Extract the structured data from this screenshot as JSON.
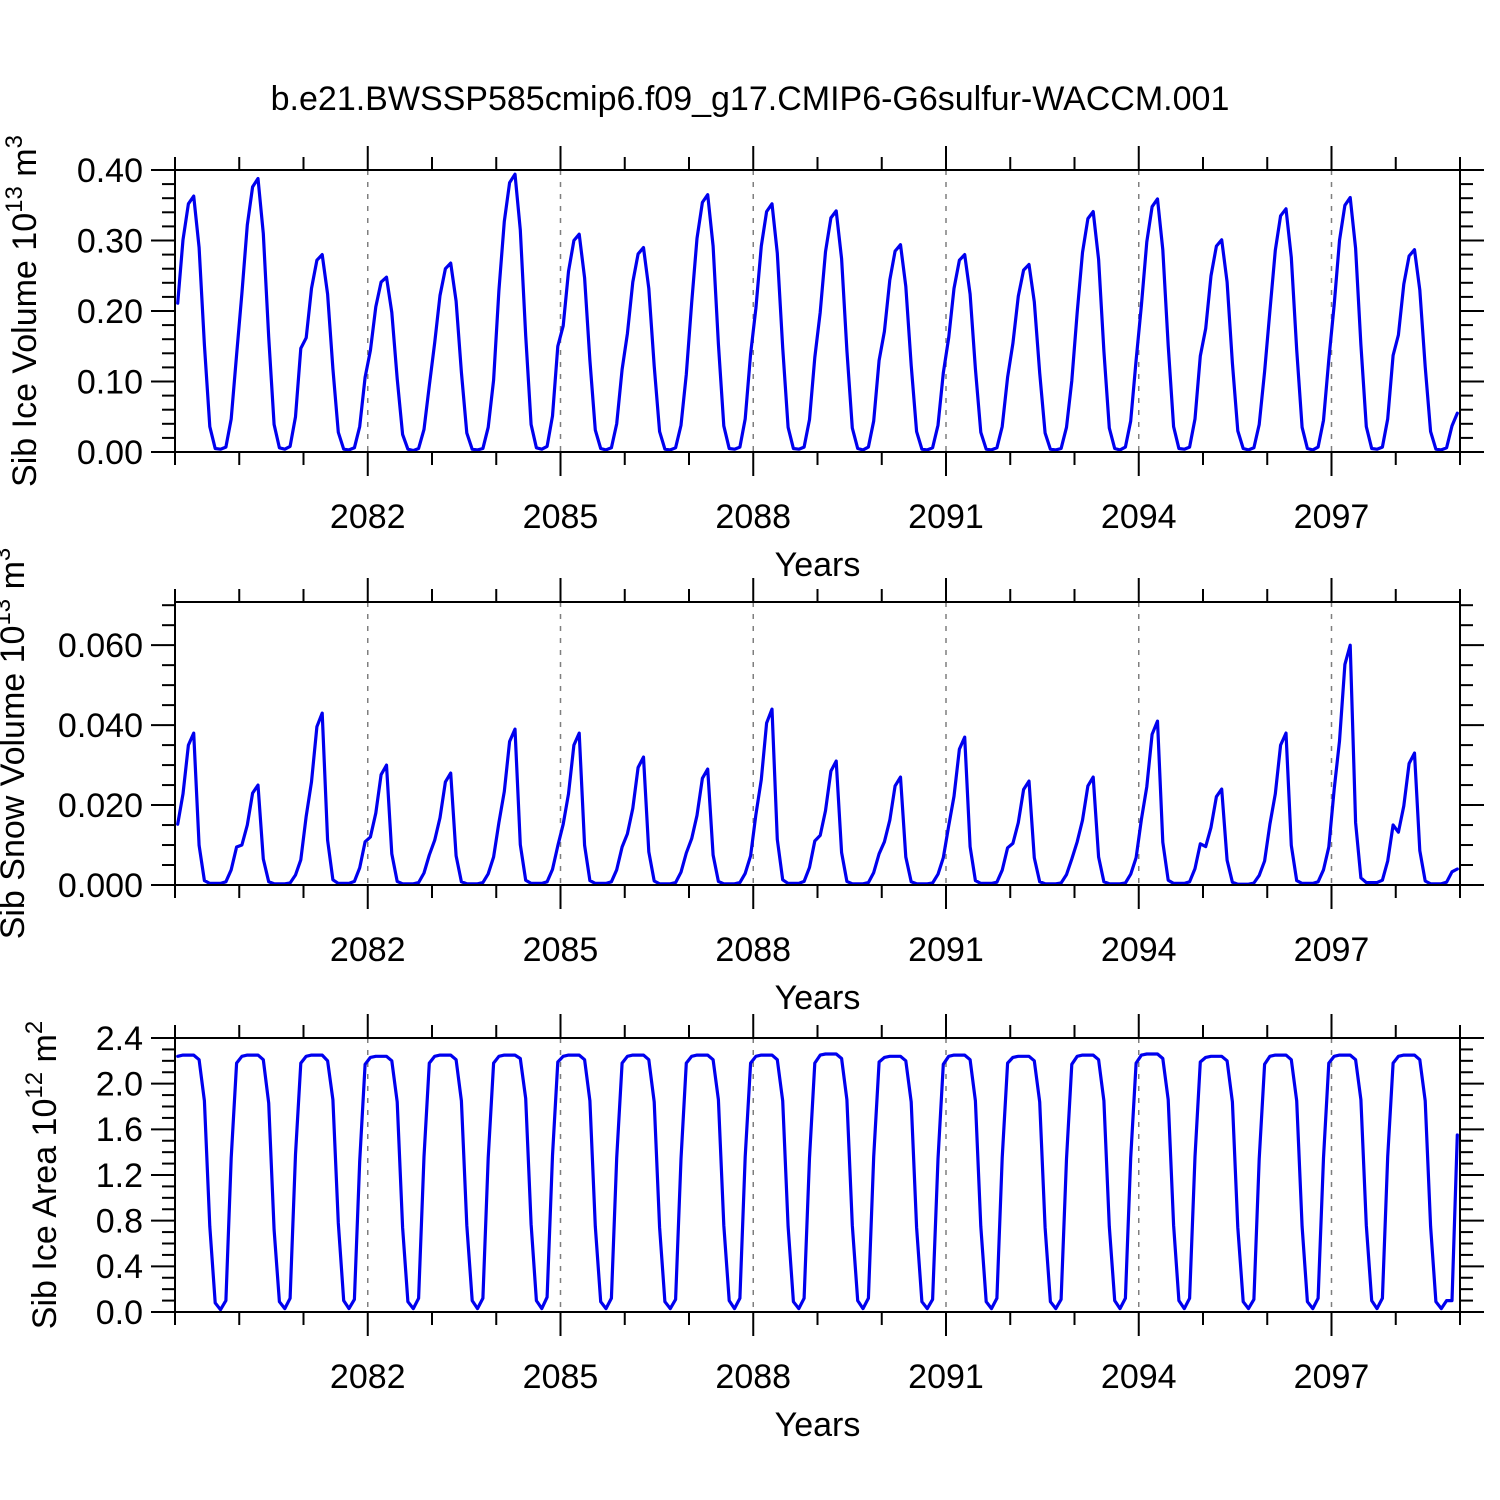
{
  "title": "b.e21.BWSSP585cmip6.f09_g17.CMIP6-G6sulfur-WACCM.001",
  "xlabel": "Years",
  "colors": {
    "line": "#0000EE",
    "axis": "#000000",
    "gridline": "#7f7f7f",
    "background": "#ffffff"
  },
  "x_axis": {
    "xlim": [
      2079,
      2099
    ],
    "major_ticks": [
      2082,
      2085,
      2088,
      2091,
      2094,
      2097
    ],
    "major_tick_labels": [
      "2082",
      "2085",
      "2088",
      "2091",
      "2094",
      "2097"
    ],
    "minor_tick_step_years": 1
  },
  "chart_data": [
    {
      "type": "line",
      "name": "sib-ice-volume",
      "ylabel_plain": "Sib Ice Volume 10^13 m^3",
      "ylabel_parts": [
        {
          "t": "Sib Ice Volume 10"
        },
        {
          "t": "13",
          "sup": true
        },
        {
          "t": " m"
        },
        {
          "t": "3",
          "sup": true
        }
      ],
      "ylim": [
        0,
        0.4
      ],
      "ytick_values": [
        0.0,
        0.1,
        0.2,
        0.3,
        0.4
      ],
      "ytick_labels": [
        "0.00",
        "0.10",
        "0.20",
        "0.30",
        "0.40"
      ],
      "y_minor_step": 0.02,
      "x_start_year": 2079,
      "points_per_year": 12,
      "annual_peaks": [
        0.363,
        0.388,
        0.28,
        0.248,
        0.268,
        0.394,
        0.309,
        0.29,
        0.365,
        0.352,
        0.342,
        0.294,
        0.28,
        0.266,
        0.341,
        0.359,
        0.301,
        0.345,
        0.361,
        0.287
      ],
      "values": [
        0.211,
        0.301,
        0.352,
        0.363,
        0.29,
        0.152,
        0.036,
        0.005,
        0.004,
        0.007,
        0.047,
        0.138,
        0.225,
        0.322,
        0.376,
        0.388,
        0.31,
        0.163,
        0.039,
        0.006,
        0.004,
        0.008,
        0.05,
        0.147,
        0.162,
        0.232,
        0.272,
        0.28,
        0.224,
        0.118,
        0.028,
        0.004,
        0.003,
        0.006,
        0.036,
        0.106,
        0.144,
        0.206,
        0.241,
        0.248,
        0.198,
        0.104,
        0.025,
        0.004,
        0.002,
        0.005,
        0.032,
        0.094,
        0.155,
        0.222,
        0.26,
        0.268,
        0.214,
        0.113,
        0.027,
        0.004,
        0.003,
        0.005,
        0.035,
        0.102,
        0.229,
        0.327,
        0.382,
        0.394,
        0.315,
        0.165,
        0.039,
        0.006,
        0.004,
        0.008,
        0.051,
        0.15,
        0.179,
        0.256,
        0.3,
        0.309,
        0.247,
        0.13,
        0.031,
        0.005,
        0.003,
        0.006,
        0.04,
        0.117,
        0.168,
        0.241,
        0.281,
        0.29,
        0.232,
        0.122,
        0.029,
        0.004,
        0.003,
        0.006,
        0.038,
        0.11,
        0.212,
        0.303,
        0.354,
        0.365,
        0.292,
        0.153,
        0.037,
        0.005,
        0.004,
        0.007,
        0.047,
        0.139,
        0.204,
        0.292,
        0.341,
        0.352,
        0.282,
        0.148,
        0.035,
        0.005,
        0.004,
        0.007,
        0.046,
        0.134,
        0.198,
        0.284,
        0.332,
        0.342,
        0.274,
        0.144,
        0.034,
        0.005,
        0.003,
        0.007,
        0.044,
        0.13,
        0.171,
        0.244,
        0.285,
        0.294,
        0.235,
        0.123,
        0.029,
        0.004,
        0.003,
        0.006,
        0.038,
        0.112,
        0.162,
        0.232,
        0.272,
        0.28,
        0.224,
        0.118,
        0.028,
        0.004,
        0.003,
        0.006,
        0.036,
        0.106,
        0.154,
        0.221,
        0.258,
        0.266,
        0.213,
        0.112,
        0.027,
        0.004,
        0.003,
        0.005,
        0.035,
        0.101,
        0.198,
        0.283,
        0.331,
        0.341,
        0.273,
        0.143,
        0.034,
        0.005,
        0.003,
        0.007,
        0.044,
        0.13,
        0.208,
        0.298,
        0.348,
        0.359,
        0.287,
        0.151,
        0.036,
        0.005,
        0.004,
        0.007,
        0.047,
        0.136,
        0.175,
        0.25,
        0.292,
        0.301,
        0.241,
        0.126,
        0.03,
        0.005,
        0.003,
        0.006,
        0.039,
        0.114,
        0.2,
        0.286,
        0.335,
        0.345,
        0.276,
        0.145,
        0.035,
        0.005,
        0.003,
        0.007,
        0.045,
        0.131,
        0.209,
        0.3,
        0.35,
        0.361,
        0.289,
        0.152,
        0.036,
        0.005,
        0.004,
        0.007,
        0.047,
        0.137,
        0.166,
        0.238,
        0.278,
        0.287,
        0.23,
        0.121,
        0.029,
        0.004,
        0.003,
        0.006,
        0.037,
        0.055
      ]
    },
    {
      "type": "line",
      "name": "sib-snow-volume",
      "ylabel_plain": "Sib Snow Volume 10^13 m^3",
      "ylabel_parts": [
        {
          "t": "Sib Snow Volume 10"
        },
        {
          "t": "13",
          "sup": true
        },
        {
          "t": " m"
        },
        {
          "t": "3",
          "sup": true
        }
      ],
      "ylim": [
        0,
        0.0708
      ],
      "ytick_values": [
        0.0,
        0.02,
        0.04,
        0.06
      ],
      "ytick_labels": [
        "0.000",
        "0.020",
        "0.040",
        "0.060"
      ],
      "y_minor_step": 0.005,
      "x_start_year": 2079,
      "points_per_year": 12,
      "annual_peaks": [
        0.038,
        0.025,
        0.043,
        0.03,
        0.028,
        0.039,
        0.038,
        0.032,
        0.029,
        0.044,
        0.031,
        0.027,
        0.037,
        0.026,
        0.027,
        0.041,
        0.024,
        0.038,
        0.06,
        0.033
      ],
      "values": [
        0.0152,
        0.0228,
        0.035,
        0.038,
        0.0099,
        0.0011,
        0.0004,
        0.0004,
        0.0004,
        0.0008,
        0.0038,
        0.0095,
        0.01,
        0.015,
        0.023,
        0.025,
        0.0065,
        0.0008,
        0.0003,
        0.0003,
        0.0003,
        0.0005,
        0.0025,
        0.0063,
        0.0172,
        0.0258,
        0.0396,
        0.043,
        0.0112,
        0.0013,
        0.0004,
        0.0004,
        0.0004,
        0.0009,
        0.0043,
        0.0108,
        0.012,
        0.018,
        0.0276,
        0.03,
        0.0078,
        0.0009,
        0.0003,
        0.0003,
        0.0003,
        0.0006,
        0.003,
        0.0075,
        0.0112,
        0.0168,
        0.0258,
        0.028,
        0.0073,
        0.0008,
        0.0003,
        0.0003,
        0.0003,
        0.0006,
        0.0028,
        0.007,
        0.0156,
        0.0234,
        0.0359,
        0.039,
        0.0101,
        0.0012,
        0.0004,
        0.0004,
        0.0004,
        0.0008,
        0.0039,
        0.0098,
        0.0152,
        0.0228,
        0.035,
        0.038,
        0.0099,
        0.0011,
        0.0004,
        0.0004,
        0.0004,
        0.0008,
        0.0038,
        0.0095,
        0.0128,
        0.0192,
        0.0294,
        0.032,
        0.0083,
        0.001,
        0.0003,
        0.0003,
        0.0003,
        0.0006,
        0.0032,
        0.008,
        0.0116,
        0.0174,
        0.0267,
        0.029,
        0.0075,
        0.0009,
        0.0003,
        0.0003,
        0.0003,
        0.0006,
        0.0029,
        0.0073,
        0.0176,
        0.0264,
        0.0405,
        0.044,
        0.0114,
        0.0013,
        0.0004,
        0.0004,
        0.0004,
        0.0009,
        0.0044,
        0.011,
        0.0124,
        0.0186,
        0.0285,
        0.031,
        0.0081,
        0.0009,
        0.0003,
        0.0003,
        0.0003,
        0.0006,
        0.0031,
        0.0078,
        0.0108,
        0.0162,
        0.0248,
        0.027,
        0.007,
        0.0008,
        0.0003,
        0.0003,
        0.0003,
        0.0005,
        0.0027,
        0.0068,
        0.0148,
        0.0222,
        0.034,
        0.037,
        0.0096,
        0.0011,
        0.0004,
        0.0004,
        0.0004,
        0.0007,
        0.0037,
        0.0093,
        0.0104,
        0.0156,
        0.0239,
        0.026,
        0.0068,
        0.0008,
        0.0003,
        0.0003,
        0.0003,
        0.0005,
        0.0026,
        0.0065,
        0.0108,
        0.0162,
        0.0248,
        0.027,
        0.007,
        0.0008,
        0.0003,
        0.0003,
        0.0003,
        0.0005,
        0.0027,
        0.0068,
        0.0164,
        0.0246,
        0.0377,
        0.041,
        0.0107,
        0.0012,
        0.0004,
        0.0004,
        0.0004,
        0.0008,
        0.0041,
        0.0103,
        0.0096,
        0.0144,
        0.0221,
        0.024,
        0.0062,
        0.0007,
        0.0002,
        0.0002,
        0.0002,
        0.0005,
        0.0024,
        0.006,
        0.0152,
        0.0228,
        0.035,
        0.038,
        0.0099,
        0.0011,
        0.0004,
        0.0004,
        0.0004,
        0.0008,
        0.0038,
        0.0095,
        0.024,
        0.036,
        0.0552,
        0.06,
        0.0156,
        0.0018,
        0.0006,
        0.0006,
        0.0006,
        0.0012,
        0.006,
        0.015,
        0.0132,
        0.0198,
        0.0304,
        0.033,
        0.0086,
        0.001,
        0.0003,
        0.0003,
        0.0003,
        0.0007,
        0.0033,
        0.004
      ]
    },
    {
      "type": "line",
      "name": "sib-ice-area",
      "ylabel_plain": "Sib Ice Area 10^12 m^2",
      "ylabel_parts": [
        {
          "t": "Sib Ice Area 10"
        },
        {
          "t": "12",
          "sup": true
        },
        {
          "t": " m"
        },
        {
          "t": "2",
          "sup": true
        }
      ],
      "ylim": [
        0,
        2.4
      ],
      "ytick_values": [
        0.0,
        0.4,
        0.8,
        1.2,
        1.6,
        2.0,
        2.4
      ],
      "ytick_labels": [
        "0.0",
        "0.4",
        "0.8",
        "1.2",
        "1.6",
        "2.0",
        "2.4"
      ],
      "y_minor_step": 0.1,
      "x_start_year": 2079,
      "points_per_year": 12,
      "annual_peaks": [
        2.25,
        2.25,
        2.25,
        2.24,
        2.25,
        2.25,
        2.25,
        2.25,
        2.25,
        2.25,
        2.26,
        2.24,
        2.25,
        2.24,
        2.25,
        2.26,
        2.24,
        2.25,
        2.25,
        2.25
      ],
      "values": [
        2.24,
        2.25,
        2.25,
        2.25,
        2.21,
        1.85,
        0.75,
        0.08,
        0.02,
        0.1,
        1.35,
        2.18,
        2.24,
        2.25,
        2.25,
        2.25,
        2.21,
        1.83,
        0.72,
        0.09,
        0.03,
        0.12,
        1.38,
        2.18,
        2.24,
        2.25,
        2.25,
        2.25,
        2.2,
        1.86,
        0.78,
        0.1,
        0.03,
        0.11,
        1.32,
        2.17,
        2.23,
        2.24,
        2.24,
        2.24,
        2.2,
        1.84,
        0.74,
        0.09,
        0.03,
        0.12,
        1.36,
        2.18,
        2.24,
        2.25,
        2.25,
        2.25,
        2.21,
        1.85,
        0.76,
        0.1,
        0.03,
        0.12,
        1.35,
        2.18,
        2.24,
        2.25,
        2.25,
        2.25,
        2.22,
        1.87,
        0.77,
        0.1,
        0.03,
        0.13,
        1.37,
        2.19,
        2.24,
        2.25,
        2.25,
        2.25,
        2.21,
        1.85,
        0.75,
        0.09,
        0.03,
        0.12,
        1.35,
        2.18,
        2.24,
        2.25,
        2.25,
        2.25,
        2.21,
        1.84,
        0.74,
        0.09,
        0.03,
        0.11,
        1.34,
        2.18,
        2.24,
        2.25,
        2.25,
        2.25,
        2.21,
        1.86,
        0.76,
        0.1,
        0.03,
        0.12,
        1.36,
        2.18,
        2.24,
        2.25,
        2.25,
        2.25,
        2.21,
        1.85,
        0.75,
        0.09,
        0.03,
        0.12,
        1.35,
        2.18,
        2.25,
        2.26,
        2.26,
        2.26,
        2.22,
        1.86,
        0.76,
        0.1,
        0.03,
        0.12,
        1.36,
        2.19,
        2.23,
        2.24,
        2.24,
        2.24,
        2.2,
        1.84,
        0.74,
        0.09,
        0.03,
        0.11,
        1.34,
        2.17,
        2.24,
        2.25,
        2.25,
        2.25,
        2.21,
        1.85,
        0.75,
        0.09,
        0.03,
        0.12,
        1.35,
        2.18,
        2.23,
        2.24,
        2.24,
        2.24,
        2.2,
        1.84,
        0.74,
        0.09,
        0.03,
        0.11,
        1.34,
        2.17,
        2.24,
        2.25,
        2.25,
        2.25,
        2.21,
        1.85,
        0.75,
        0.1,
        0.03,
        0.12,
        1.35,
        2.18,
        2.25,
        2.26,
        2.26,
        2.26,
        2.22,
        1.86,
        0.76,
        0.1,
        0.03,
        0.12,
        1.36,
        2.19,
        2.23,
        2.24,
        2.24,
        2.24,
        2.2,
        1.84,
        0.74,
        0.09,
        0.03,
        0.11,
        1.34,
        2.17,
        2.24,
        2.25,
        2.25,
        2.25,
        2.21,
        1.85,
        0.75,
        0.09,
        0.03,
        0.12,
        1.35,
        2.18,
        2.24,
        2.25,
        2.25,
        2.25,
        2.21,
        1.86,
        0.76,
        0.1,
        0.03,
        0.12,
        1.36,
        2.18,
        2.24,
        2.25,
        2.25,
        2.25,
        2.21,
        1.85,
        0.75,
        0.09,
        0.03,
        0.1,
        0.1,
        1.55
      ]
    }
  ]
}
